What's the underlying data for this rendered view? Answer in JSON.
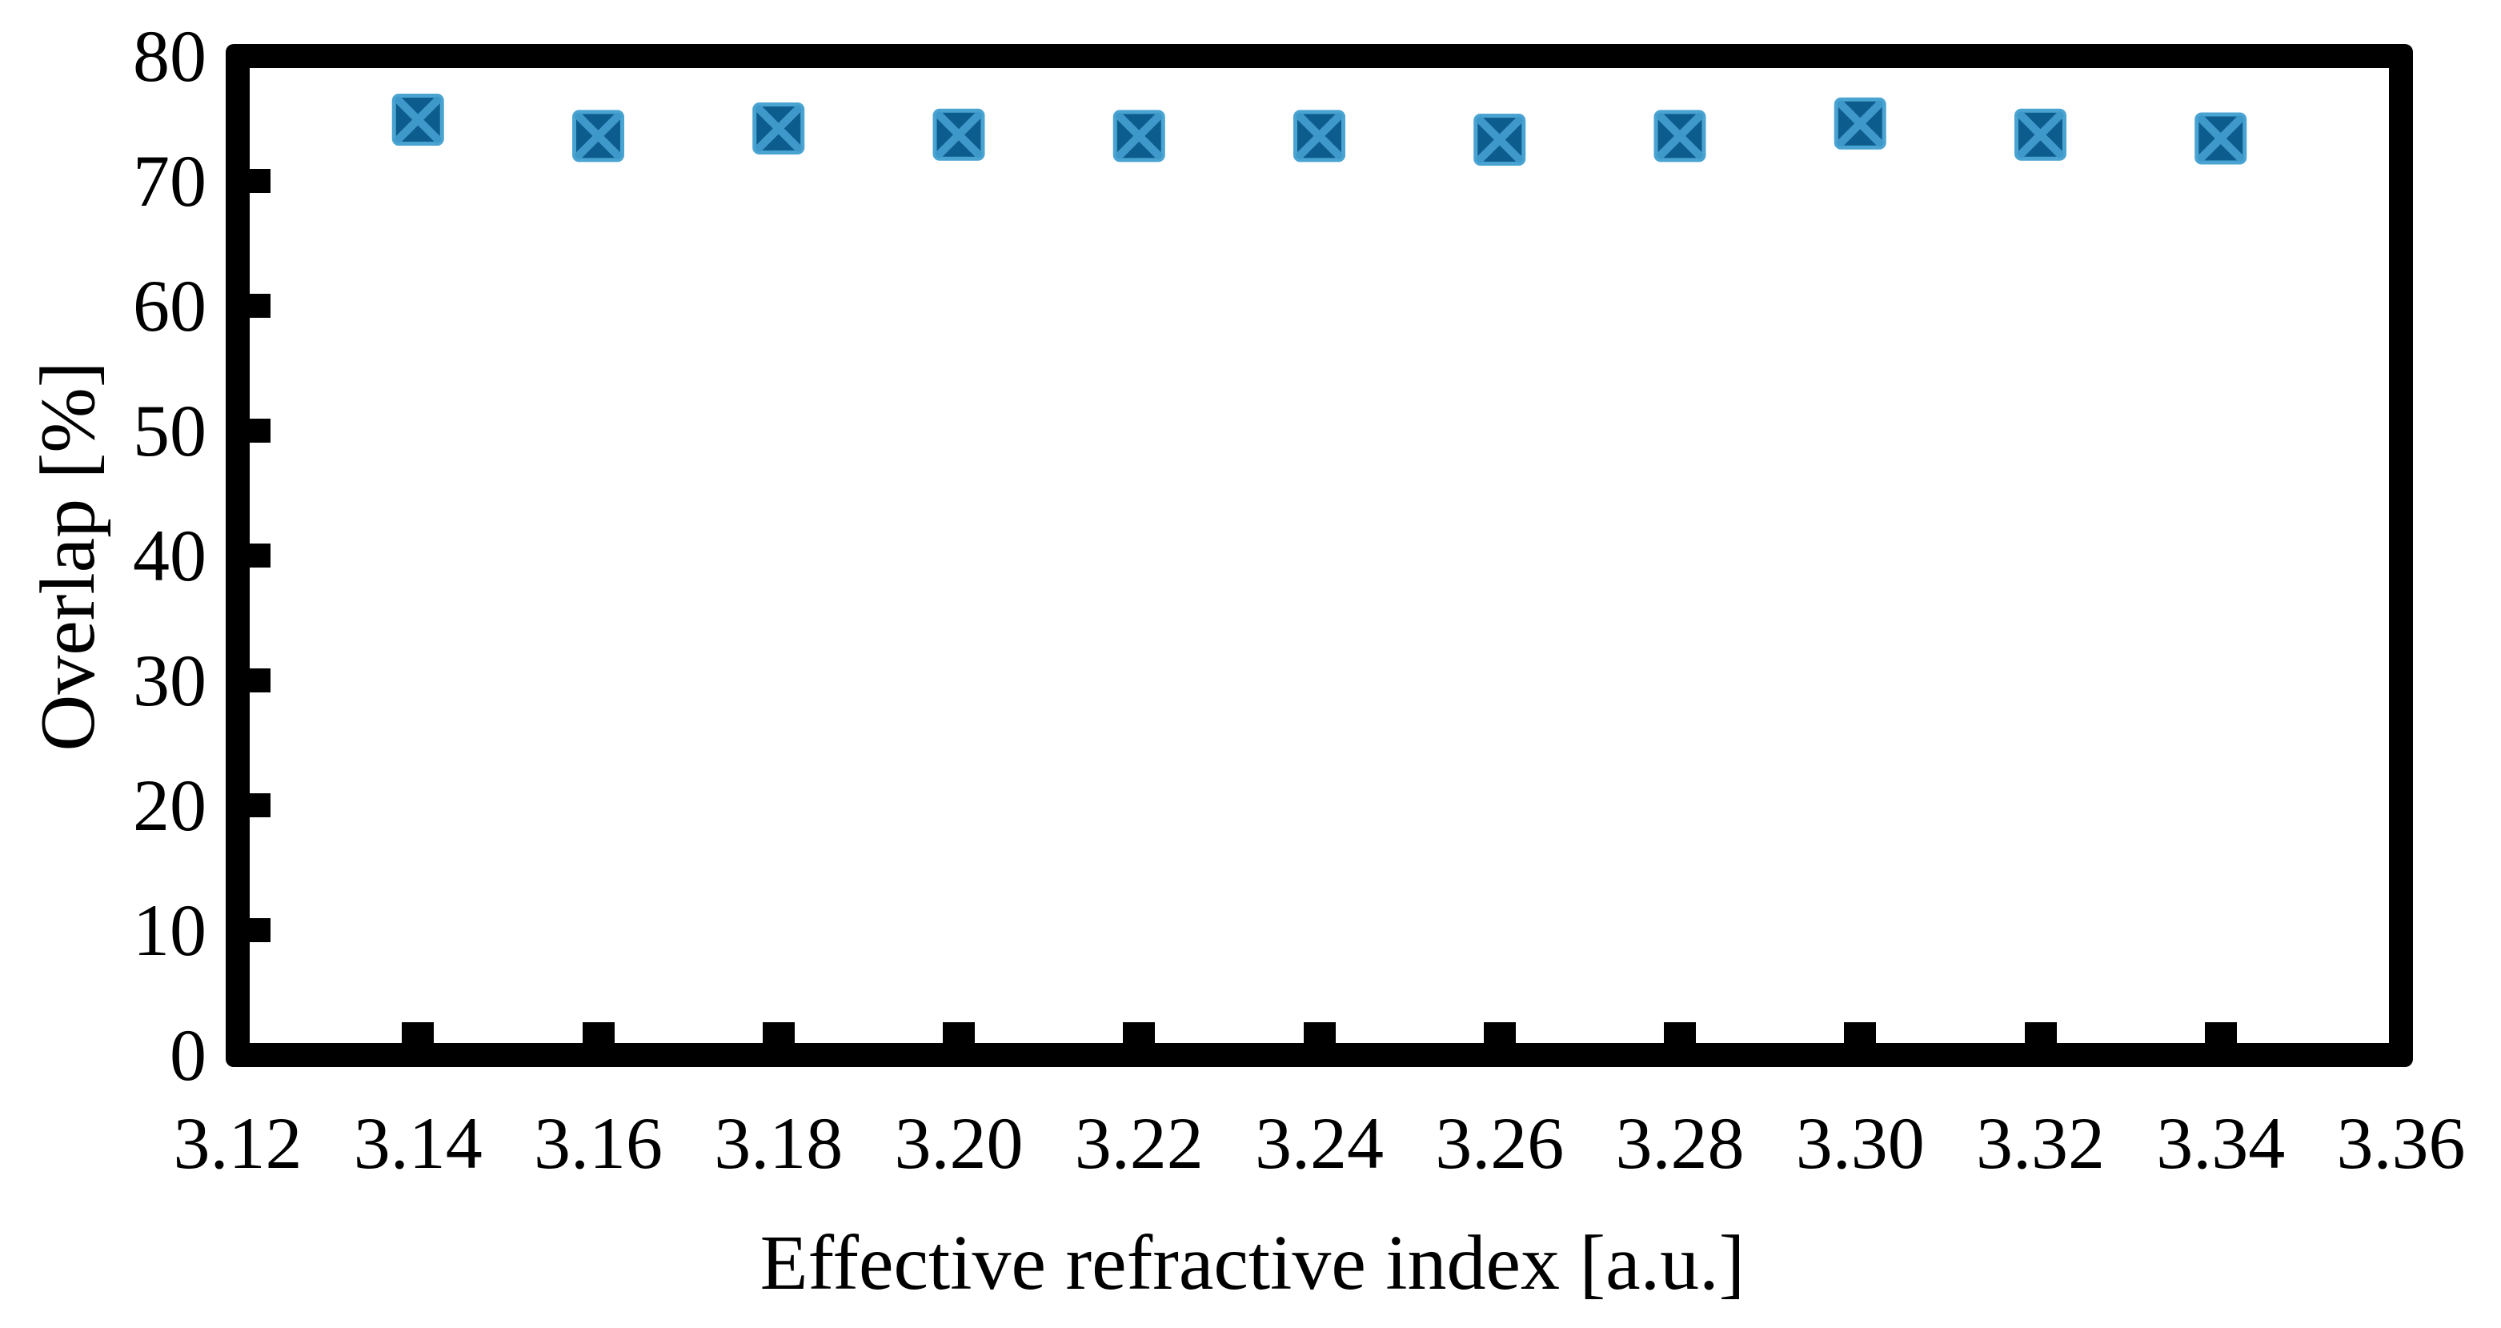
{
  "figure": {
    "background_color": "#ffffff",
    "frame_color": "#000000",
    "text_color": "#000000"
  },
  "chart_data": {
    "type": "scatter",
    "title": "",
    "xlabel": "Effective refractive index [a.u.]",
    "ylabel": "Overlap [%]",
    "xlim": [
      3.12,
      3.36
    ],
    "ylim": [
      0,
      80
    ],
    "x_tick_labels": [
      "3.12",
      "3.14",
      "3.16",
      "3.18",
      "3.20",
      "3.22",
      "3.24",
      "3.26",
      "3.28",
      "3.30",
      "3.32",
      "3.34",
      "3.36"
    ],
    "x_tick_values": [
      3.12,
      3.14,
      3.16,
      3.18,
      3.2,
      3.22,
      3.24,
      3.26,
      3.28,
      3.3,
      3.32,
      3.34,
      3.36
    ],
    "y_tick_labels": [
      "0",
      "10",
      "20",
      "30",
      "40",
      "50",
      "60",
      "70",
      "80"
    ],
    "y_tick_values": [
      0,
      10,
      20,
      30,
      40,
      50,
      60,
      70,
      80
    ],
    "grid": false,
    "legend": null,
    "tick_direction": "in",
    "ticks_on_sides": [
      "left",
      "bottom"
    ],
    "series": [
      {
        "name": "overlap",
        "marker": "filled-square-with-x",
        "marker_size_px": 60,
        "marker_fill": "#0d5c8e",
        "marker_cross_color": "#3f98ca",
        "marker_edge_color": "#4aa4d2",
        "x": [
          3.14,
          3.16,
          3.18,
          3.2,
          3.22,
          3.24,
          3.26,
          3.28,
          3.3,
          3.32,
          3.34
        ],
        "y": [
          74.9,
          73.6,
          74.2,
          73.7,
          73.6,
          73.6,
          73.3,
          73.6,
          74.6,
          73.7,
          73.4
        ]
      }
    ]
  }
}
